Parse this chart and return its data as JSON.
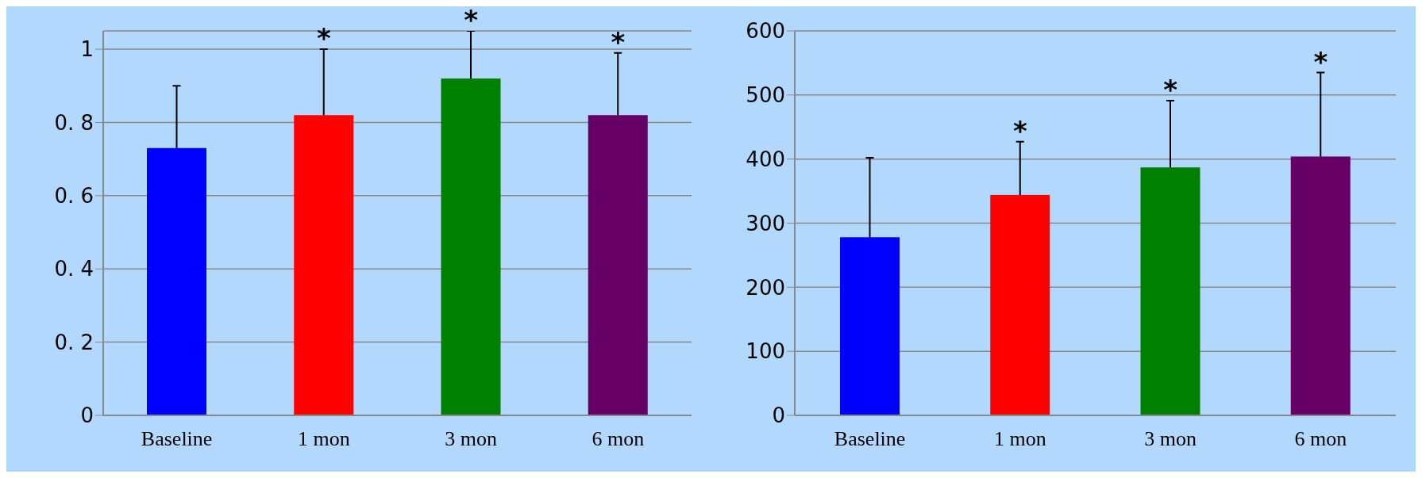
{
  "chart_data": [
    {
      "type": "bar",
      "categories": [
        "Baseline",
        "1 mon",
        "3 mon",
        "6 mon"
      ],
      "values": [
        0.73,
        0.82,
        0.92,
        0.82
      ],
      "colors": [
        "#0000ff",
        "#ff0000",
        "#008000",
        "#660066"
      ],
      "errors": [
        [
          0.73,
          0.9
        ],
        [
          0.82,
          1.0
        ],
        [
          0.92,
          1.05
        ],
        [
          0.82,
          0.99
        ]
      ],
      "ylim": [
        0,
        1.05
      ],
      "yticks": [
        0,
        {
          "value": 0.2,
          "label": "0. 2"
        },
        {
          "value": 0.4,
          "label": "0. 4"
        },
        {
          "value": 0.6,
          "label": "0. 6"
        },
        {
          "value": 0.8,
          "label": "0. 8"
        },
        1
      ],
      "grid": "y",
      "annotations": [
        {
          "text": "*",
          "x": "1 mon",
          "y": 1.0
        },
        {
          "text": "*",
          "x": "3 mon",
          "y": 1.05
        },
        {
          "text": "*",
          "x": "6 mon",
          "y": 0.99
        }
      ]
    },
    {
      "type": "bar",
      "categories": [
        "Baseline",
        "1 mon",
        "3 mon",
        "6 mon"
      ],
      "values": [
        278,
        344,
        387,
        404
      ],
      "colors": [
        "#0000ff",
        "#ff0000",
        "#008000",
        "#660066"
      ],
      "errors": [
        [
          278,
          402
        ],
        [
          344,
          427
        ],
        [
          387,
          491
        ],
        [
          404,
          535
        ]
      ],
      "ylim": [
        0,
        600
      ],
      "yticks": [
        0,
        100,
        200,
        300,
        400,
        500,
        600
      ],
      "grid": "y",
      "annotations": [
        {
          "text": "*",
          "x": "1 mon",
          "y": 427
        },
        {
          "text": "*",
          "x": "3 mon",
          "y": 491
        },
        {
          "text": "*",
          "x": "6 mon",
          "y": 535
        }
      ]
    }
  ]
}
